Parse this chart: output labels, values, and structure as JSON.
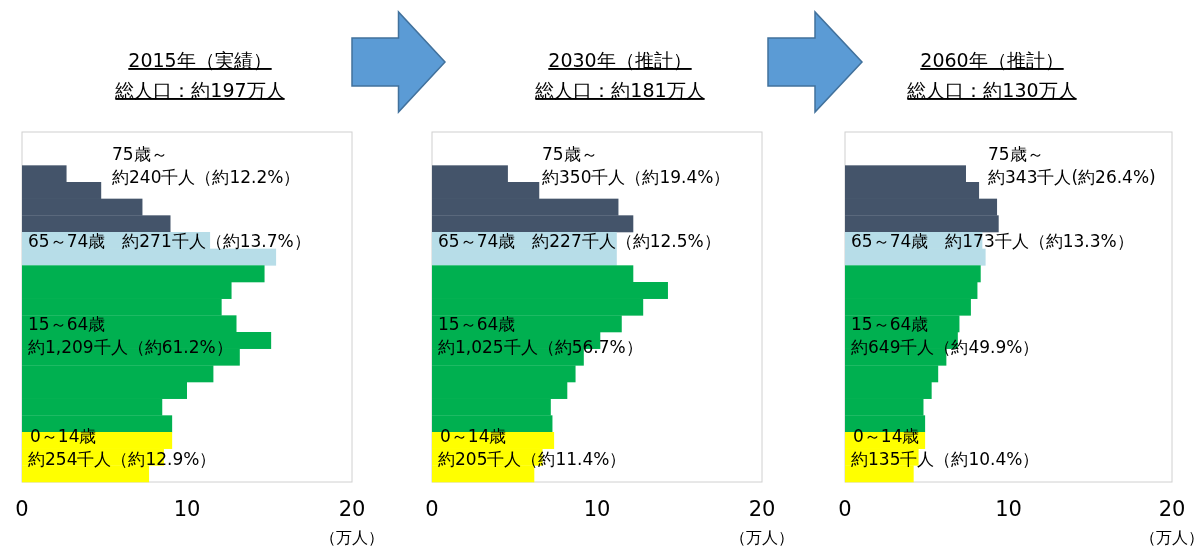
{
  "chart_data": [
    {
      "type": "bar",
      "orientation": "horizontal",
      "title": "2015年（実績）",
      "subtitle": "総人口：約197万人",
      "xlabel": "（万人）",
      "xlim": [
        0,
        20
      ],
      "xticks": [
        0,
        10,
        20
      ],
      "categories": [
        null,
        null,
        null,
        null,
        null,
        null,
        null,
        null,
        null,
        null,
        null,
        null,
        null,
        null,
        null,
        null,
        null,
        null,
        null
      ],
      "values": [
        2.7,
        4.8,
        7.3,
        9.0,
        11.4,
        15.4,
        14.7,
        12.7,
        12.1,
        13.0,
        15.1,
        13.2,
        11.6,
        10.0,
        8.5,
        9.1,
        9.1,
        8.6,
        7.7
      ],
      "colors": [
        "#44546a",
        "#44546a",
        "#44546a",
        "#44546a",
        "#b7dde8",
        "#b7dde8",
        "#00b050",
        "#00b050",
        "#00b050",
        "#00b050",
        "#00b050",
        "#00b050",
        "#00b050",
        "#00b050",
        "#00b050",
        "#00b050",
        "#ffff00",
        "#ffff00",
        "#ffff00"
      ],
      "annotations": [
        "75歳～",
        "約240千人（約12.2%）",
        "65～74歳　約271千人（約13.7%）",
        "15～64歳",
        "約1,209千人（約61.2%）",
        "0～14歳",
        "約254千人（約12.9%）"
      ]
    },
    {
      "type": "bar",
      "orientation": "horizontal",
      "title": "2030年（推計）",
      "subtitle": "総人口：約181万人",
      "xlabel": "（万人）",
      "xlim": [
        0,
        20
      ],
      "xticks": [
        0,
        10,
        20
      ],
      "categories": [
        null,
        null,
        null,
        null,
        null,
        null,
        null,
        null,
        null,
        null,
        null,
        null,
        null,
        null,
        null,
        null,
        null,
        null,
        null
      ],
      "values": [
        4.6,
        6.5,
        11.3,
        12.2,
        11.2,
        11.2,
        12.2,
        14.3,
        12.8,
        11.5,
        10.2,
        9.2,
        8.7,
        8.2,
        7.2,
        7.3,
        7.4,
        6.7,
        6.2
      ],
      "colors": [
        "#44546a",
        "#44546a",
        "#44546a",
        "#44546a",
        "#b7dde8",
        "#b7dde8",
        "#00b050",
        "#00b050",
        "#00b050",
        "#00b050",
        "#00b050",
        "#00b050",
        "#00b050",
        "#00b050",
        "#00b050",
        "#00b050",
        "#ffff00",
        "#ffff00",
        "#ffff00"
      ],
      "annotations": [
        "75歳～",
        "約350千人（約19.4%）",
        "65～74歳　約227千人（約12.5%）",
        "15～64歳",
        "約1,025千人（約56.7%）",
        "0～14歳",
        "約205千人（約11.4%）"
      ]
    },
    {
      "type": "bar",
      "orientation": "horizontal",
      "title": "2060年（推計）",
      "subtitle": "総人口：約130万人",
      "xlabel": "（万人）",
      "xlim": [
        0,
        20
      ],
      "xticks": [
        0,
        10,
        20
      ],
      "categories": [
        null,
        null,
        null,
        null,
        null,
        null,
        null,
        null,
        null,
        null,
        null,
        null,
        null,
        null,
        null,
        null,
        null,
        null,
        null
      ],
      "values": [
        7.4,
        8.2,
        9.3,
        9.4,
        8.4,
        8.6,
        8.3,
        8.1,
        7.7,
        7.0,
        6.9,
        6.2,
        5.7,
        5.3,
        4.8,
        4.9,
        4.9,
        4.5,
        4.2
      ],
      "colors": [
        "#44546a",
        "#44546a",
        "#44546a",
        "#44546a",
        "#b7dde8",
        "#b7dde8",
        "#00b050",
        "#00b050",
        "#00b050",
        "#00b050",
        "#00b050",
        "#00b050",
        "#00b050",
        "#00b050",
        "#00b050",
        "#00b050",
        "#ffff00",
        "#ffff00",
        "#ffff00"
      ],
      "annotations": [
        "75歳～",
        "約343千人(約26.4%)",
        "65～74歳　約173千人（約13.3%）",
        "15～64歳",
        "約649千人（約49.9%）",
        "0～14歳",
        "約135千人（約10.4%）"
      ]
    }
  ]
}
